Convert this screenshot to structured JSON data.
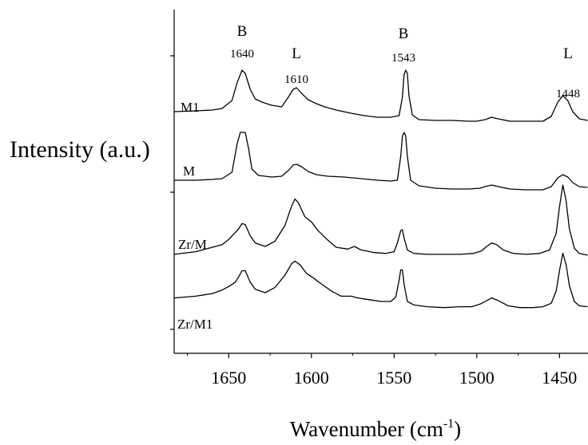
{
  "chart_data": {
    "type": "line",
    "title": "",
    "xlabel": "Wavenumber (cm",
    "xlabel_sup": "-1",
    "xlabel_close": ")",
    "ylabel": "Intensity (a.u.)",
    "xlim": [
      1683,
      1433
    ],
    "x_reversed": true,
    "xticks": [
      1650,
      1600,
      1550,
      1500,
      1450
    ],
    "xtick_labels": [
      "1650",
      "1600",
      "1550",
      "1500",
      "1450"
    ],
    "y_ticks_unlabeled": true,
    "peak_annotations": [
      {
        "type": "B",
        "value": "1640",
        "x": 1640
      },
      {
        "type": "L",
        "value": "1610",
        "x": 1610
      },
      {
        "type": "B",
        "value": "1543",
        "x": 1543
      },
      {
        "type": "L",
        "value": "1448",
        "x": 1448
      }
    ],
    "series": [
      {
        "name": "M1",
        "points": [
          [
            1683,
            0.1
          ],
          [
            1670,
            0.11
          ],
          [
            1660,
            0.12
          ],
          [
            1654,
            0.14
          ],
          [
            1648,
            0.24
          ],
          [
            1645,
            0.46
          ],
          [
            1642,
            0.62
          ],
          [
            1640,
            0.58
          ],
          [
            1637,
            0.38
          ],
          [
            1634,
            0.26
          ],
          [
            1630,
            0.22
          ],
          [
            1624,
            0.18
          ],
          [
            1618,
            0.16
          ],
          [
            1614,
            0.28
          ],
          [
            1611,
            0.38
          ],
          [
            1609,
            0.4
          ],
          [
            1606,
            0.33
          ],
          [
            1602,
            0.25
          ],
          [
            1597,
            0.2
          ],
          [
            1592,
            0.16
          ],
          [
            1585,
            0.12
          ],
          [
            1576,
            0.08
          ],
          [
            1568,
            0.05
          ],
          [
            1560,
            0.03
          ],
          [
            1552,
            0.03
          ],
          [
            1547,
            0.05
          ],
          [
            1545,
            0.28
          ],
          [
            1544,
            0.56
          ],
          [
            1543,
            0.62
          ],
          [
            1542,
            0.58
          ],
          [
            1541,
            0.3
          ],
          [
            1539,
            0.06
          ],
          [
            1535,
            0.0
          ],
          [
            1525,
            -0.01
          ],
          [
            1515,
            -0.01
          ],
          [
            1505,
            -0.02
          ],
          [
            1500,
            -0.02
          ],
          [
            1495,
            0.0
          ],
          [
            1491,
            0.03
          ],
          [
            1487,
            0.01
          ],
          [
            1480,
            -0.02
          ],
          [
            1470,
            -0.02
          ],
          [
            1460,
            -0.02
          ],
          [
            1455,
            0.04
          ],
          [
            1451,
            0.22
          ],
          [
            1448,
            0.3
          ],
          [
            1445,
            0.24
          ],
          [
            1442,
            0.1
          ],
          [
            1438,
            0.01
          ],
          [
            1433,
            -0.01
          ]
        ]
      },
      {
        "name": "M",
        "points": [
          [
            1683,
            0.0
          ],
          [
            1670,
            0.0
          ],
          [
            1660,
            0.01
          ],
          [
            1654,
            0.02
          ],
          [
            1648,
            0.1
          ],
          [
            1645,
            0.45
          ],
          [
            1643,
            0.6
          ],
          [
            1640,
            0.6
          ],
          [
            1638,
            0.4
          ],
          [
            1636,
            0.14
          ],
          [
            1632,
            0.06
          ],
          [
            1624,
            0.04
          ],
          [
            1618,
            0.05
          ],
          [
            1614,
            0.12
          ],
          [
            1611,
            0.19
          ],
          [
            1609,
            0.2
          ],
          [
            1606,
            0.17
          ],
          [
            1602,
            0.11
          ],
          [
            1597,
            0.07
          ],
          [
            1590,
            0.05
          ],
          [
            1580,
            0.04
          ],
          [
            1570,
            0.02
          ],
          [
            1560,
            0.0
          ],
          [
            1552,
            -0.01
          ],
          [
            1548,
            0.0
          ],
          [
            1546,
            0.3
          ],
          [
            1545,
            0.55
          ],
          [
            1544,
            0.6
          ],
          [
            1543,
            0.56
          ],
          [
            1542,
            0.3
          ],
          [
            1540,
            0.0
          ],
          [
            1535,
            -0.07
          ],
          [
            1525,
            -0.1
          ],
          [
            1515,
            -0.11
          ],
          [
            1505,
            -0.11
          ],
          [
            1498,
            -0.1
          ],
          [
            1495,
            -0.08
          ],
          [
            1491,
            -0.06
          ],
          [
            1487,
            -0.08
          ],
          [
            1480,
            -0.11
          ],
          [
            1470,
            -0.12
          ],
          [
            1460,
            -0.12
          ],
          [
            1455,
            -0.08
          ],
          [
            1451,
            0.03
          ],
          [
            1448,
            0.07
          ],
          [
            1445,
            0.04
          ],
          [
            1442,
            -0.03
          ],
          [
            1438,
            -0.08
          ],
          [
            1433,
            -0.09
          ]
        ]
      },
      {
        "name": "Zr/M",
        "points": [
          [
            1683,
            0.01
          ],
          [
            1670,
            0.04
          ],
          [
            1660,
            0.09
          ],
          [
            1654,
            0.12
          ],
          [
            1650,
            0.18
          ],
          [
            1646,
            0.26
          ],
          [
            1644,
            0.3
          ],
          [
            1642,
            0.36
          ],
          [
            1640,
            0.35
          ],
          [
            1637,
            0.22
          ],
          [
            1634,
            0.14
          ],
          [
            1628,
            0.1
          ],
          [
            1622,
            0.16
          ],
          [
            1616,
            0.34
          ],
          [
            1612,
            0.56
          ],
          [
            1610,
            0.64
          ],
          [
            1608,
            0.6
          ],
          [
            1604,
            0.44
          ],
          [
            1600,
            0.38
          ],
          [
            1596,
            0.28
          ],
          [
            1590,
            0.17
          ],
          [
            1585,
            0.09
          ],
          [
            1578,
            0.07
          ],
          [
            1574,
            0.1
          ],
          [
            1570,
            0.06
          ],
          [
            1562,
            0.03
          ],
          [
            1555,
            0.02
          ],
          [
            1550,
            0.04
          ],
          [
            1548,
            0.14
          ],
          [
            1546,
            0.28
          ],
          [
            1545,
            0.29
          ],
          [
            1544,
            0.2
          ],
          [
            1542,
            0.06
          ],
          [
            1538,
            0.02
          ],
          [
            1530,
            0.01
          ],
          [
            1520,
            0.01
          ],
          [
            1510,
            0.01
          ],
          [
            1502,
            0.02
          ],
          [
            1497,
            0.05
          ],
          [
            1494,
            0.1
          ],
          [
            1491,
            0.14
          ],
          [
            1488,
            0.12
          ],
          [
            1484,
            0.06
          ],
          [
            1478,
            0.02
          ],
          [
            1470,
            0.01
          ],
          [
            1462,
            0.02
          ],
          [
            1456,
            0.06
          ],
          [
            1452,
            0.25
          ],
          [
            1450,
            0.55
          ],
          [
            1448,
            0.8
          ],
          [
            1446,
            0.62
          ],
          [
            1444,
            0.3
          ],
          [
            1441,
            0.08
          ],
          [
            1438,
            0.02
          ],
          [
            1433,
            0.0
          ]
        ]
      },
      {
        "name": "Zr/M1",
        "points": [
          [
            1683,
            0.04
          ],
          [
            1670,
            0.06
          ],
          [
            1660,
            0.09
          ],
          [
            1654,
            0.13
          ],
          [
            1650,
            0.17
          ],
          [
            1646,
            0.22
          ],
          [
            1644,
            0.28
          ],
          [
            1642,
            0.35
          ],
          [
            1640,
            0.35
          ],
          [
            1637,
            0.22
          ],
          [
            1634,
            0.14
          ],
          [
            1628,
            0.1
          ],
          [
            1622,
            0.16
          ],
          [
            1616,
            0.3
          ],
          [
            1612,
            0.43
          ],
          [
            1610,
            0.46
          ],
          [
            1607,
            0.42
          ],
          [
            1603,
            0.32
          ],
          [
            1599,
            0.27
          ],
          [
            1594,
            0.2
          ],
          [
            1588,
            0.12
          ],
          [
            1582,
            0.06
          ],
          [
            1576,
            0.06
          ],
          [
            1572,
            0.04
          ],
          [
            1565,
            0.02
          ],
          [
            1558,
            0.0
          ],
          [
            1552,
            0.0
          ],
          [
            1549,
            0.05
          ],
          [
            1547,
            0.24
          ],
          [
            1546,
            0.36
          ],
          [
            1545,
            0.36
          ],
          [
            1544,
            0.2
          ],
          [
            1542,
            0.0
          ],
          [
            1538,
            -0.04
          ],
          [
            1530,
            -0.06
          ],
          [
            1520,
            -0.07
          ],
          [
            1510,
            -0.06
          ],
          [
            1503,
            -0.06
          ],
          [
            1498,
            -0.03
          ],
          [
            1494,
            0.01
          ],
          [
            1491,
            0.04
          ],
          [
            1487,
            0.01
          ],
          [
            1481,
            -0.05
          ],
          [
            1474,
            -0.07
          ],
          [
            1466,
            -0.07
          ],
          [
            1460,
            -0.06
          ],
          [
            1455,
            -0.02
          ],
          [
            1452,
            0.12
          ],
          [
            1450,
            0.35
          ],
          [
            1448,
            0.55
          ],
          [
            1446,
            0.42
          ],
          [
            1444,
            0.18
          ],
          [
            1441,
            0.0
          ],
          [
            1438,
            -0.05
          ],
          [
            1433,
            -0.06
          ]
        ]
      }
    ],
    "series_baselines": {
      "M1": 150,
      "M": 226,
      "Zr/M": 320,
      "Zr/M1": 378
    },
    "series_scale": {
      "M1": 100,
      "M": 100,
      "Zr/M": 110,
      "Zr/M1": 110
    }
  }
}
